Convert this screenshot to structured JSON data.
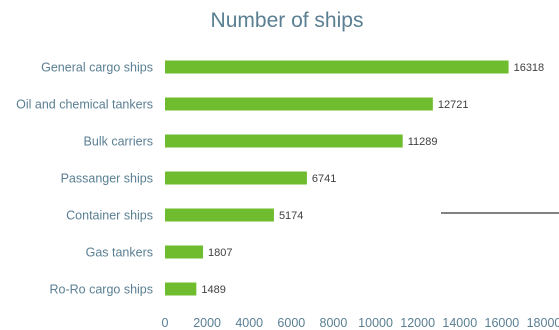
{
  "chart_data": {
    "type": "bar",
    "orientation": "horizontal",
    "title": "Number of ships",
    "categories": [
      "General cargo ships",
      "Oil and chemical tankers",
      "Bulk carriers",
      "Passanger ships",
      "Container ships",
      "Gas tankers",
      "Ro-Ro cargo ships"
    ],
    "values": [
      16318,
      12721,
      11289,
      6741,
      5174,
      1807,
      1489
    ],
    "xlabel": "",
    "ylabel": "",
    "xlim": [
      0,
      18000
    ],
    "x_ticks": [
      "0",
      "2000",
      "4000",
      "6000",
      "8000",
      "10000",
      "12000",
      "14000",
      "16000",
      "18000"
    ],
    "grid": false,
    "legend": "none",
    "bar_color": "#6fbd2e",
    "text_color": "#5a7f93"
  }
}
